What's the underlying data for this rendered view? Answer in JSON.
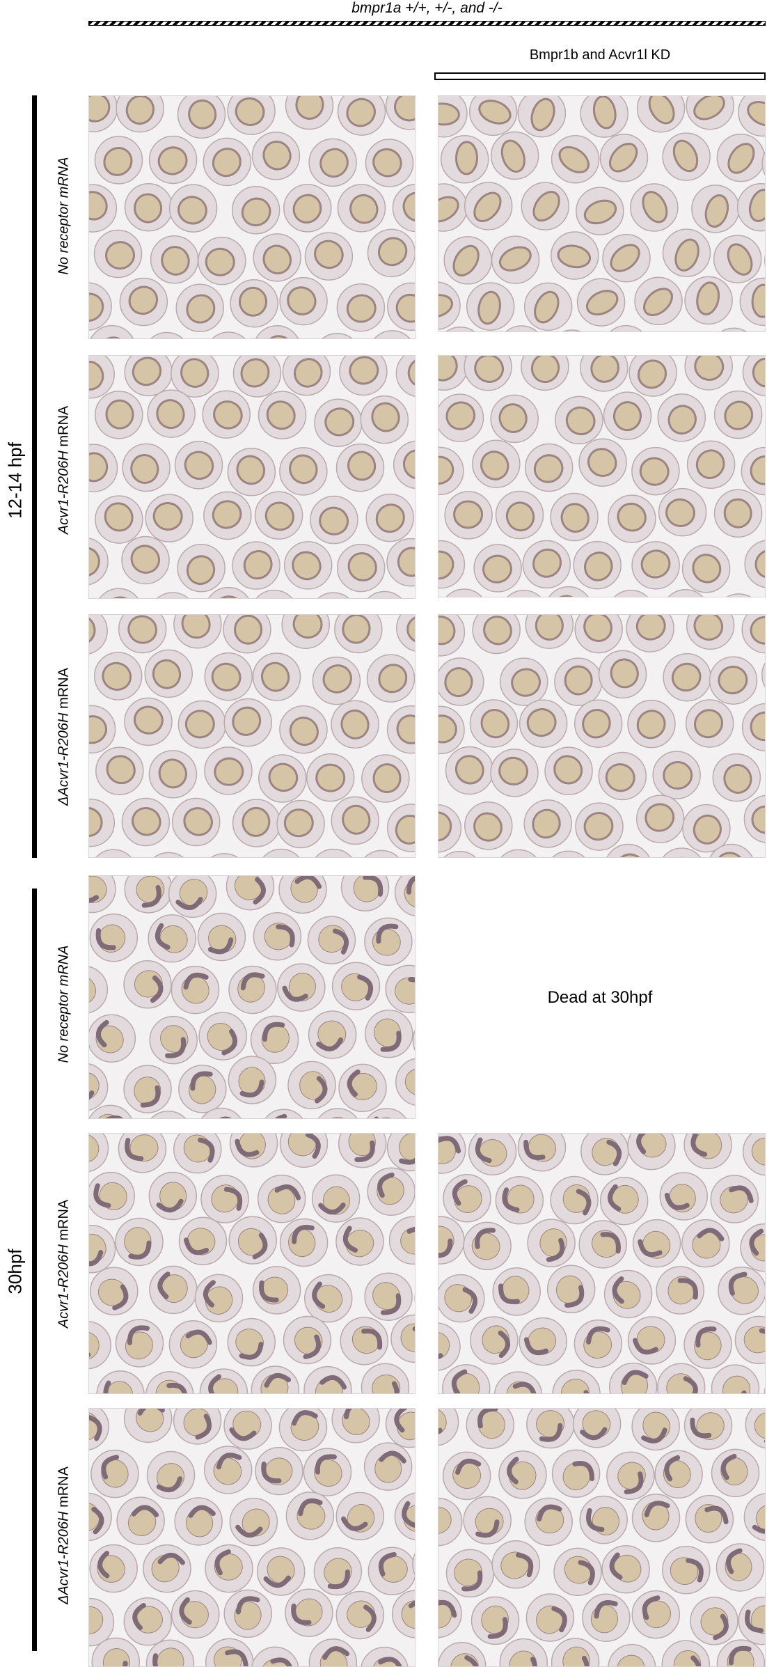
{
  "header": {
    "genotype_label": "bmpr1a  +/+, +/-, and -/-",
    "knockdown_label": "Bmpr1b and Acvr1l KD"
  },
  "time_points": [
    {
      "label": "12-14 hpf"
    },
    {
      "label": "30hpf"
    }
  ],
  "conditions": [
    {
      "italic": "No receptor mRNA",
      "plain": ""
    },
    {
      "italic": "Acvr1-R206H",
      "plain": " mRNA"
    },
    {
      "italic": "ΔAcvr1-R206H",
      "plain": " mRNA"
    }
  ],
  "empty_panel_text": "Dead at 30hpf",
  "colors": {
    "background": "#f4f1f2",
    "chorion": "#e2dadc",
    "chorion_edge": "#b9aaae",
    "yolk": "#d6c4a6",
    "embryo_early": "#9b8482",
    "embryo_late": "#7f6a78"
  },
  "panels_description_visible": [
    {
      "row": "12-14 hpf / No receptor mRNA / control",
      "stage": "early"
    },
    {
      "row": "12-14 hpf / No receptor mRNA / Bmpr1b and Acvr1l KD",
      "stage": "early"
    },
    {
      "row": "12-14 hpf / Acvr1-R206H mRNA / control",
      "stage": "early"
    },
    {
      "row": "12-14 hpf / Acvr1-R206H mRNA / Bmpr1b and Acvr1l KD",
      "stage": "early"
    },
    {
      "row": "12-14 hpf / ΔAcvr1-R206H mRNA / control",
      "stage": "early"
    },
    {
      "row": "12-14 hpf / ΔAcvr1-R206H mRNA / Bmpr1b and Acvr1l KD",
      "stage": "early"
    },
    {
      "row": "30hpf / No receptor mRNA / control",
      "stage": "late"
    },
    {
      "row": "30hpf / Acvr1-R206H mRNA / control",
      "stage": "late"
    },
    {
      "row": "30hpf / Acvr1-R206H mRNA / Bmpr1b and Acvr1l KD",
      "stage": "late"
    },
    {
      "row": "30hpf / ΔAcvr1-R206H mRNA / control",
      "stage": "late"
    },
    {
      "row": "30hpf / ΔAcvr1-R206H mRNA / Bmpr1b and Acvr1l KD",
      "stage": "late"
    }
  ]
}
